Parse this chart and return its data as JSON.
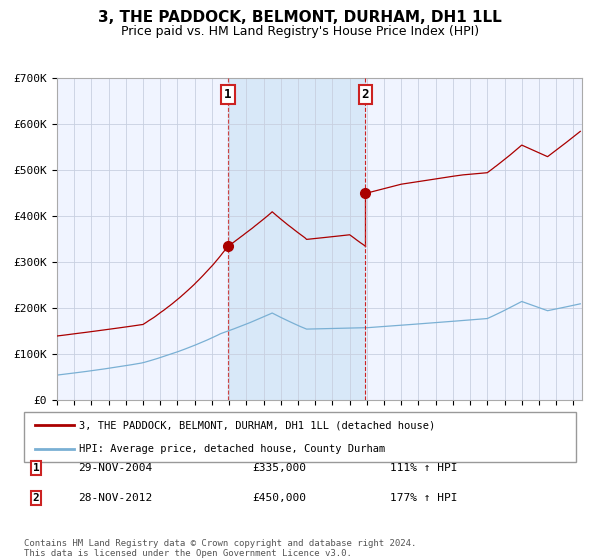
{
  "title": "3, THE PADDOCK, BELMONT, DURHAM, DH1 1LL",
  "subtitle": "Price paid vs. HM Land Registry's House Price Index (HPI)",
  "ylim": [
    0,
    700000
  ],
  "yticks": [
    0,
    100000,
    200000,
    300000,
    400000,
    500000,
    600000,
    700000
  ],
  "ytick_labels": [
    "£0",
    "£100K",
    "£200K",
    "£300K",
    "£400K",
    "£500K",
    "£600K",
    "£700K"
  ],
  "background_color": "#ffffff",
  "plot_bg_color": "#f0f4ff",
  "grid_color": "#c8d0e0",
  "title_fontsize": 11,
  "subtitle_fontsize": 9,
  "sale1_date": "29-NOV-2004",
  "sale1_price": 335000,
  "sale1_pct": "111%",
  "sale2_date": "28-NOV-2012",
  "sale2_price": 450000,
  "sale2_pct": "177%",
  "legend_label1": "3, THE PADDOCK, BELMONT, DURHAM, DH1 1LL (detached house)",
  "legend_label2": "HPI: Average price, detached house, County Durham",
  "footer1": "Contains HM Land Registry data © Crown copyright and database right 2024.",
  "footer2": "This data is licensed under the Open Government Licence v3.0.",
  "line1_color": "#aa0000",
  "line2_color": "#7ab0d4",
  "shade_color": "#d8e8f8",
  "vline1_color": "#cc4444",
  "vline2_color": "#cc2222",
  "sale1_x": 2004.92,
  "sale2_x": 2012.92,
  "xlim_start": 1995,
  "xlim_end": 2025.5
}
